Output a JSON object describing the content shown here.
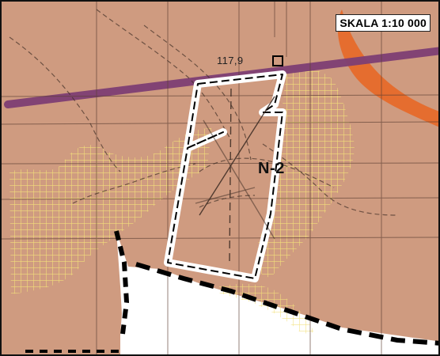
{
  "map": {
    "scale_label": "SKALA 1:10 000",
    "elevation_label": "117,9",
    "area_label": "N-2",
    "colors": {
      "background": "#cf9b80",
      "grid_hatch": "#f4e17a",
      "road_purple": "#7e3f74",
      "orange_band": "#e66a2a",
      "black_boundary": "#000000",
      "white_area": "#ffffff"
    }
  }
}
